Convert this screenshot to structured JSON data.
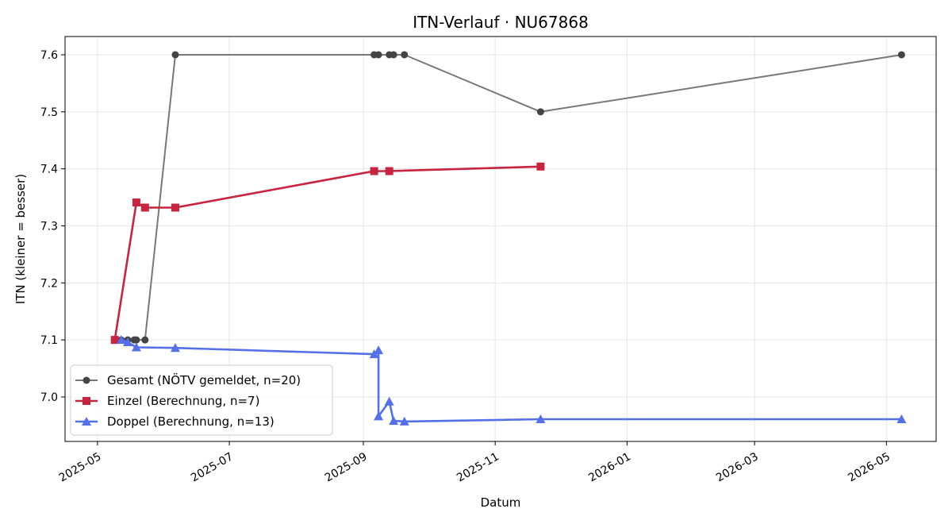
{
  "chart_data": {
    "type": "line",
    "title": "ITN-Verlauf · NU67868",
    "xlabel": "Datum",
    "ylabel": "ITN  (kleiner = besser)",
    "xlim": [
      "2025-04-16",
      "2026-05-24"
    ],
    "ylim": [
      6.922,
      7.632
    ],
    "x_ticks": [
      "2025-05-01",
      "2025-07-01",
      "2025-09-01",
      "2025-11-01",
      "2026-01-01",
      "2026-03-01",
      "2026-05-01"
    ],
    "x_tick_labels": [
      "2025-05",
      "2025-07",
      "2025-09",
      "2025-11",
      "2026-01",
      "2026-03",
      "2026-05"
    ],
    "y_ticks": [
      7.0,
      7.1,
      7.2,
      7.3,
      7.4,
      7.5,
      7.6
    ],
    "y_tick_labels": [
      "7.0",
      "7.1",
      "7.2",
      "7.3",
      "7.4",
      "7.5",
      "7.6"
    ],
    "grid": true,
    "legend_position": "lower-left",
    "series": [
      {
        "name": "Gesamt (NÖTV gemeldet, n=20)",
        "color": "#777777",
        "marker_color": "#444444",
        "marker": "circle",
        "x": [
          "2025-05-09",
          "2025-05-12",
          "2025-05-15",
          "2025-05-18",
          "2025-05-19",
          "2025-05-23",
          "2025-06-06",
          "2025-09-06",
          "2025-09-08",
          "2025-09-13",
          "2025-09-15",
          "2025-09-20",
          "2025-11-22",
          "2026-05-08"
        ],
        "y": [
          7.1,
          7.1,
          7.1,
          7.1,
          7.1,
          7.1,
          7.6,
          7.6,
          7.6,
          7.6,
          7.6,
          7.6,
          7.5,
          7.6
        ]
      },
      {
        "name": "Einzel (Berechnung, n=7)",
        "color": "#c8233f",
        "marker": "square",
        "x": [
          "2025-05-09",
          "2025-05-19",
          "2025-05-23",
          "2025-06-06",
          "2025-09-06",
          "2025-09-13",
          "2025-11-22"
        ],
        "y": [
          7.1,
          7.341,
          7.332,
          7.332,
          7.396,
          7.396,
          7.404
        ]
      },
      {
        "name": "Doppel (Berechnung, n=13)",
        "color": "#5470e8",
        "marker": "triangle",
        "x": [
          "2025-05-12",
          "2025-05-15",
          "2025-05-19",
          "2025-06-06",
          "2025-09-06",
          "2025-09-08",
          "2025-09-08",
          "2025-09-13",
          "2025-09-15",
          "2025-09-20",
          "2025-11-22",
          "2026-05-08"
        ],
        "y": [
          7.1,
          7.096,
          7.087,
          7.086,
          7.075,
          7.082,
          6.966,
          6.992,
          6.958,
          6.957,
          6.961,
          6.961
        ]
      }
    ]
  }
}
